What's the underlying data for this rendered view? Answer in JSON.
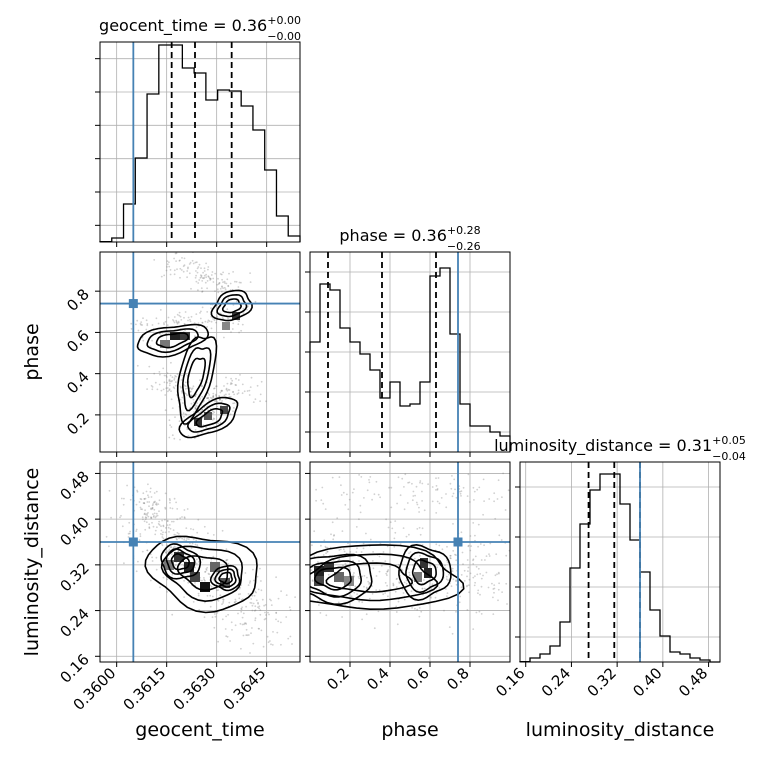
{
  "chart_data": [
    {
      "type": "histogram",
      "parameter": "geocent_time",
      "title": {
        "prefix": "geocent_time = 0.36",
        "sup": "+0.00",
        "sub": "−0.00"
      },
      "bins_range": [
        0.3595,
        0.3655
      ],
      "counts": [
        0.002,
        0.02,
        0.19,
        0.42,
        0.74,
        0.985,
        0.985,
        0.87,
        0.845,
        0.71,
        0.76,
        0.755,
        0.68,
        0.56,
        0.36,
        0.13,
        0.03
      ],
      "quantiles": [
        0.36165,
        0.36235,
        0.36345
      ],
      "truth": 0.3605
    },
    {
      "type": "scatter-contour",
      "x_parameter": "geocent_time",
      "y_parameter": "phase",
      "xlim": [
        0.3595,
        0.3655
      ],
      "ylim": [
        0.02,
        0.99
      ],
      "truth": {
        "x": 0.3605,
        "y": 0.74
      }
    },
    {
      "type": "histogram",
      "parameter": "phase",
      "title": {
        "prefix": "phase = 0.36",
        "sup": "+0.28",
        "sub": "−0.26"
      },
      "bins_range": [
        0.0,
        1.0
      ],
      "counts": [
        0.55,
        0.84,
        0.81,
        0.62,
        0.55,
        0.49,
        0.41,
        0.27,
        0.35,
        0.23,
        0.24,
        0.35,
        0.88,
        0.92,
        0.59,
        0.24,
        0.13,
        0.13,
        0.1,
        0.08
      ],
      "quantiles": [
        0.09,
        0.36,
        0.63
      ],
      "truth": 0.74
    },
    {
      "type": "scatter-contour",
      "x_parameter": "geocent_time",
      "y_parameter": "luminosity_distance",
      "xlim": [
        0.3595,
        0.3655
      ],
      "ylim": [
        0.15,
        0.5
      ],
      "truth": {
        "x": 0.3605,
        "y": 0.36
      }
    },
    {
      "type": "scatter-contour",
      "x_parameter": "phase",
      "y_parameter": "luminosity_distance",
      "xlim": [
        0.0,
        1.0
      ],
      "ylim": [
        0.15,
        0.5
      ],
      "truth": {
        "x": 0.74,
        "y": 0.36
      }
    },
    {
      "type": "histogram",
      "parameter": "luminosity_distance",
      "title": {
        "prefix": "luminosity_distance = 0.31",
        "sup": "+0.05",
        "sub": "−0.04"
      },
      "bins_range": [
        0.15,
        0.5
      ],
      "counts": [
        0.002,
        0.02,
        0.04,
        0.08,
        0.2,
        0.47,
        0.69,
        0.86,
        0.94,
        0.94,
        0.79,
        0.61,
        0.45,
        0.26,
        0.13,
        0.05,
        0.04,
        0.02,
        0.01,
        0.0
      ],
      "quantiles": [
        0.27,
        0.315,
        0.36
      ],
      "truth": 0.36
    }
  ],
  "axes": {
    "geocent_time": {
      "label": "geocent_time",
      "ticks": [
        0.36,
        0.3615,
        0.363,
        0.3645
      ],
      "tick_labels": [
        "0.3600",
        "0.3615",
        "0.3630",
        "0.3645"
      ]
    },
    "phase": {
      "label": "phase",
      "ticks": [
        0.2,
        0.4,
        0.6,
        0.8
      ],
      "tick_labels": [
        "0.2",
        "0.4",
        "0.6",
        "0.8"
      ]
    },
    "luminosity_distance": {
      "label": "luminosity_distance",
      "ticks": [
        0.16,
        0.24,
        0.32,
        0.4,
        0.48
      ],
      "tick_labels": [
        "0.16",
        "0.24",
        "0.32",
        "0.40",
        "0.48"
      ]
    }
  },
  "colors": {
    "truth": "#4682b4",
    "lines": "#000000",
    "grid": "#b0b0b0",
    "samples": "#7a7a7a"
  }
}
